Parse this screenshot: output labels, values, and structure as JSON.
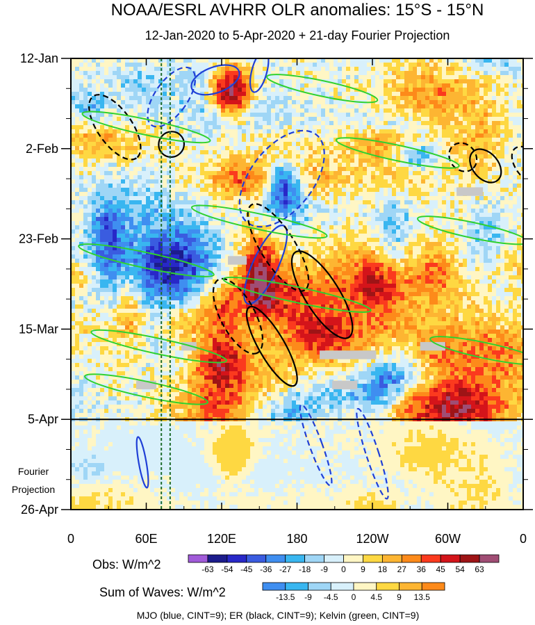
{
  "chart_data": {
    "type": "heatmap",
    "title": "NOAA/ESRL AVHRR OLR anomalies: 15°S - 15°N",
    "subtitle": "12-Jan-2020 to 5-Apr-2020 + 21-day Fourier Projection",
    "x_ticks": [
      "0",
      "60E",
      "120E",
      "180",
      "120W",
      "60W",
      "0"
    ],
    "x_tick_values": [
      0,
      60,
      120,
      180,
      240,
      300,
      360
    ],
    "y_ticks": [
      "12-Jan",
      "2-Feb",
      "23-Feb",
      "15-Mar",
      "5-Apr",
      "26-Apr"
    ],
    "y_tick_days": [
      0,
      21,
      42,
      63,
      84,
      105
    ],
    "projection_label": [
      "Fourier",
      "Projection"
    ],
    "projection_start_day": 84,
    "mjo_reference_lon": [
      72,
      79
    ],
    "obs_colorbar": {
      "label": "Obs: W/m^2",
      "levels": [
        "-63",
        "-54",
        "-45",
        "-36",
        "-27",
        "-18",
        "-9",
        "0",
        "9",
        "18",
        "27",
        "36",
        "45",
        "54",
        "63"
      ],
      "colors": [
        "#a15bd9",
        "#1c1c8c",
        "#2828c8",
        "#3a5ce0",
        "#3f8ef0",
        "#39b6f0",
        "#9fd6f6",
        "#d8f0fb",
        "#fff6c4",
        "#fed842",
        "#fdb532",
        "#fd8a1a",
        "#fb3a1e",
        "#d4141a",
        "#9e1416",
        "#a04d74"
      ]
    },
    "waves_colorbar": {
      "label": "Sum of Waves: W/m^2",
      "levels": [
        "-13.5",
        "-9",
        "-4.5",
        "0",
        "4.5",
        "9",
        "13.5"
      ],
      "colors": [
        "#3f8ef0",
        "#39b6f0",
        "#9fd6f6",
        "#d8f0fb",
        "#fff6c4",
        "#fed842",
        "#fdb532",
        "#fd8a1a"
      ]
    },
    "contour_legend": "MJO (blue, CINT=9); ER (black, CINT=9); Kelvin (green, CINT=9)",
    "series": [
      {
        "name": "MJO",
        "color": "#1f3fd6",
        "contours": [
          {
            "lon": 80,
            "day": 9,
            "dlon": 13,
            "dday": 8,
            "angle": 35,
            "sign": -1
          },
          {
            "lon": 150,
            "day": 3,
            "dlon": 6,
            "dday": 5,
            "angle": 15,
            "sign": 1
          },
          {
            "lon": 168,
            "day": 28,
            "dlon": 25,
            "dday": 13,
            "angle": 38,
            "sign": -1
          },
          {
            "lon": 155,
            "day": 48,
            "dlon": 10,
            "dday": 10,
            "angle": 25,
            "sign": 1
          },
          {
            "lon": 115,
            "day": 5,
            "dlon": 20,
            "dday": 3,
            "angle": -20,
            "sign": 1
          },
          {
            "lon": 195,
            "day": 90,
            "dlon": 5,
            "dday": 10,
            "angle": -20,
            "sign": -1
          },
          {
            "lon": 240,
            "day": 92,
            "dlon": 5,
            "dday": 11,
            "angle": -18,
            "sign": -1
          },
          {
            "lon": 57,
            "day": 94,
            "dlon": 3,
            "dday": 6,
            "angle": -10,
            "sign": 1
          }
        ]
      },
      {
        "name": "ER",
        "color": "#000000",
        "contours": [
          {
            "lon": 35,
            "day": 16,
            "dlon": 30,
            "dday": 4,
            "angle": 55,
            "sign": -1
          },
          {
            "lon": 165,
            "day": 44,
            "dlon": 40,
            "dday": 4,
            "angle": 58,
            "sign": -1
          },
          {
            "lon": 200,
            "day": 55,
            "dlon": 40,
            "dday": 4,
            "angle": 58,
            "sign": 1
          },
          {
            "lon": 133,
            "day": 60,
            "dlon": 33,
            "dday": 4,
            "angle": 62,
            "sign": -1
          },
          {
            "lon": 160,
            "day": 67,
            "dlon": 36,
            "dday": 3,
            "angle": 60,
            "sign": 1
          },
          {
            "lon": 330,
            "day": 25,
            "dlon": 15,
            "dday": 3,
            "angle": 50,
            "sign": 1
          },
          {
            "lon": 312,
            "day": 23,
            "dlon": 12,
            "dday": 3,
            "angle": 50,
            "sign": -1
          },
          {
            "lon": 80,
            "day": 20,
            "dlon": 10,
            "dday": 3,
            "angle": 45,
            "sign": 1
          },
          {
            "lon": 365,
            "day": 25,
            "dlon": 18,
            "dday": 3,
            "angle": 50,
            "sign": -1
          }
        ]
      },
      {
        "name": "Kelvin",
        "color": "#2fd12f",
        "contours": [
          {
            "lon": 60,
            "day": 16,
            "dlon": 52,
            "dday": 1.8,
            "angle": 12,
            "sign": 1
          },
          {
            "lon": 150,
            "day": 38,
            "dlon": 55,
            "dday": 1.8,
            "angle": 12,
            "sign": 1
          },
          {
            "lon": 60,
            "day": 47,
            "dlon": 55,
            "dday": 1.8,
            "angle": 12,
            "sign": 1
          },
          {
            "lon": 180,
            "day": 55,
            "dlon": 60,
            "dday": 1.8,
            "angle": 12,
            "sign": 1
          },
          {
            "lon": 70,
            "day": 67,
            "dlon": 55,
            "dday": 1.8,
            "angle": 12,
            "sign": 1
          },
          {
            "lon": 260,
            "day": 22,
            "dlon": 50,
            "dday": 1.8,
            "angle": 12,
            "sign": 1
          },
          {
            "lon": 320,
            "day": 40,
            "dlon": 45,
            "dday": 1.8,
            "angle": 12,
            "sign": 1
          },
          {
            "lon": 330,
            "day": 68,
            "dlon": 45,
            "dday": 1.8,
            "angle": 12,
            "sign": 1
          },
          {
            "lon": 200,
            "day": 7,
            "dlon": 45,
            "dday": 1.8,
            "angle": 12,
            "sign": 1
          },
          {
            "lon": 60,
            "day": 77,
            "dlon": 50,
            "dday": 1.8,
            "angle": 12,
            "sign": 1
          }
        ]
      }
    ],
    "missing_data_cells": [
      {
        "lon_start": 307,
        "lon_end": 328,
        "day": 30,
        "days": 2
      },
      {
        "lon_start": 198,
        "lon_end": 243,
        "day": 68,
        "days": 2
      },
      {
        "lon_start": 208,
        "lon_end": 228,
        "day": 75,
        "days": 2
      },
      {
        "lon_start": 278,
        "lon_end": 298,
        "day": 66,
        "days": 2
      },
      {
        "lon_start": 125,
        "lon_end": 140,
        "day": 46,
        "days": 2
      },
      {
        "lon_start": 52,
        "lon_end": 68,
        "day": 75,
        "days": 2
      },
      {
        "lon_start": 88,
        "lon_end": 100,
        "day": 66,
        "days": 2
      }
    ]
  }
}
